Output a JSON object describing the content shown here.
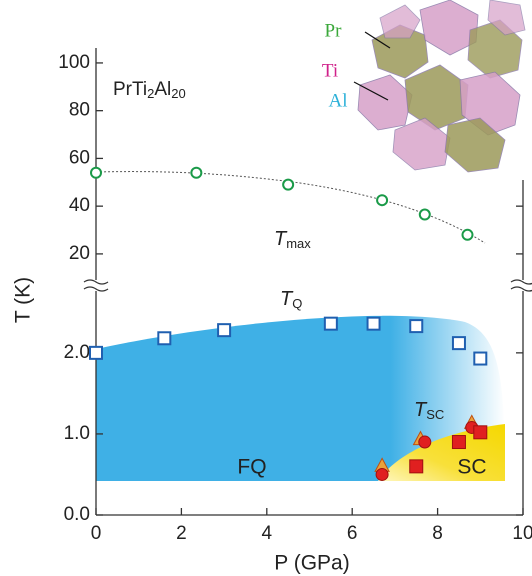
{
  "chart_data": [
    {
      "type": "scatter",
      "xlim": [
        0,
        10
      ],
      "ylim": [
        12,
        105
      ],
      "yticks": [
        20,
        40,
        60,
        80,
        100
      ],
      "compound": [
        "PrTi",
        "2",
        "Al",
        "20"
      ],
      "annotation": {
        "symbol": "T",
        "subscript": "max"
      },
      "inset_labels": [
        {
          "text": "Pr",
          "color": "#3aa83a"
        },
        {
          "text": "Ti",
          "color": "#d0208a"
        },
        {
          "text": "Al",
          "color": "#2ab0d8"
        }
      ],
      "series": [
        {
          "color": "#1a9a48",
          "marker": "open-circle",
          "x": [
            0,
            2.35,
            4.5,
            6.7,
            7.7,
            8.7
          ],
          "values": [
            54,
            54,
            49,
            42.5,
            36.5,
            28
          ]
        }
      ]
    },
    {
      "type": "scatter",
      "xlim": [
        0,
        10
      ],
      "ylim": [
        0,
        2.8
      ],
      "yticks": [
        {
          "value": 0,
          "label": "0.0"
        },
        {
          "value": 1,
          "label": "1.0"
        },
        {
          "value": 2,
          "label": "2.0"
        }
      ],
      "xticks": [
        0,
        2,
        4,
        6,
        8,
        10
      ],
      "x_label": "P (GPa)",
      "y_label": "T (K)",
      "annotations": [
        {
          "symbol": "T",
          "subscript": "Q"
        },
        {
          "symbol": "T",
          "subscript": "SC"
        }
      ],
      "region_labels": [
        "FQ",
        "SC"
      ],
      "series": [
        {
          "color": "#1f5fb0",
          "marker": "open-square",
          "x": [
            0,
            1.6,
            3.0,
            5.5,
            6.5,
            7.5,
            8.5,
            9.0
          ],
          "values": [
            2.0,
            2.18,
            2.28,
            2.36,
            2.36,
            2.33,
            2.12,
            1.93
          ]
        },
        {
          "color": "#e8a23c",
          "marker": "triangle",
          "x": [
            6.7,
            7.6,
            8.8
          ],
          "values": [
            0.6,
            0.93,
            1.13
          ]
        },
        {
          "color": "#e02020",
          "marker": "circle",
          "x": [
            6.7,
            7.7,
            8.8
          ],
          "values": [
            0.5,
            0.9,
            1.08
          ]
        },
        {
          "color": "#e02020",
          "marker": "square",
          "x": [
            7.5,
            8.5,
            9.0
          ],
          "values": [
            0.6,
            0.9,
            1.02
          ]
        }
      ]
    }
  ]
}
